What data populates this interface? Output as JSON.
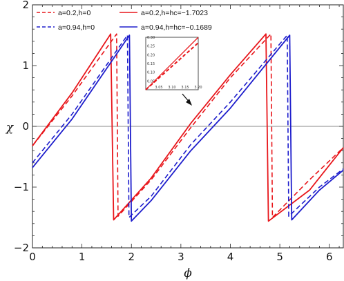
{
  "chart_data": {
    "type": "line",
    "xlabel": "ϕ",
    "ylabel": "χ",
    "xlim": [
      0,
      6.2832
    ],
    "ylim": [
      -2,
      2
    ],
    "xticks": [
      "0",
      "1",
      "2",
      "3",
      "4",
      "5",
      "6"
    ],
    "yticks": [
      "−2",
      "−1",
      "0",
      "1",
      "2"
    ],
    "legend_position": "top-left",
    "colors": {
      "red": "#e8161b",
      "blue": "#1d1dcc",
      "zero_line": "#8a8a8a"
    },
    "series": [
      {
        "name": "a=0.2,h=0",
        "color": "#e8161b",
        "dash": true,
        "x": [
          0,
          0.8,
          1.7,
          1.73,
          2.4,
          3.2,
          4.0,
          4.82,
          4.85,
          5.6,
          6.2832
        ],
        "y": [
          -0.32,
          0.5,
          1.52,
          -1.48,
          -0.88,
          -0.02,
          0.8,
          1.52,
          -1.5,
          -0.88,
          -0.35
        ]
      },
      {
        "name": "a=0.2,h=hc=−1.7023",
        "color": "#e8161b",
        "dash": false,
        "x": [
          0,
          0.8,
          1.58,
          1.64,
          2.4,
          3.2,
          4.0,
          4.72,
          4.77,
          5.6,
          6.2832
        ],
        "y": [
          -0.32,
          0.55,
          1.52,
          -1.54,
          -0.85,
          0.05,
          0.85,
          1.52,
          -1.56,
          -1.05,
          -0.35
        ]
      },
      {
        "name": "a=0.94,h=0",
        "color": "#1d1dcc",
        "dash": true,
        "x": [
          0,
          0.8,
          1.92,
          1.95,
          2.4,
          3.2,
          4.0,
          5.15,
          5.18,
          5.8,
          6.2832
        ],
        "y": [
          -0.6,
          0.2,
          1.5,
          -1.5,
          -1.15,
          -0.3,
          0.4,
          1.5,
          -1.48,
          -1.0,
          -0.7
        ]
      },
      {
        "name": "a=0.94,h=hc=−0.1689",
        "color": "#1d1dcc",
        "dash": false,
        "x": [
          0,
          0.8,
          1.96,
          2.0,
          2.4,
          3.2,
          4.0,
          5.2,
          5.24,
          5.8,
          6.2832
        ],
        "y": [
          -0.68,
          0.12,
          1.5,
          -1.56,
          -1.22,
          -0.4,
          0.3,
          1.5,
          -1.54,
          -1.05,
          -0.72
        ]
      }
    ],
    "inset": {
      "xticks": [
        "3.05",
        "3.10",
        "3.15",
        "3.20"
      ],
      "yticks": [
        "0.05",
        "0.10",
        "0.15",
        "0.20",
        "0.25",
        "0.30"
      ],
      "xlim": [
        3.0,
        3.2
      ],
      "ylim": [
        0.0,
        0.3
      ]
    }
  }
}
